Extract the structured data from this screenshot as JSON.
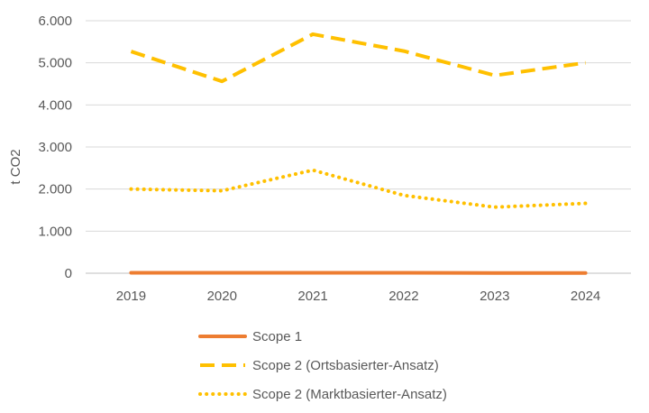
{
  "chart_data": {
    "type": "line",
    "title": "",
    "xlabel": "",
    "ylabel": "t CO2",
    "x": [
      "2019",
      "2020",
      "2021",
      "2022",
      "2023",
      "2024"
    ],
    "ylim": [
      0,
      6000
    ],
    "yticks": [
      {
        "value": 0,
        "label": "0"
      },
      {
        "value": 1000,
        "label": "1.000"
      },
      {
        "value": 2000,
        "label": "2.000"
      },
      {
        "value": 3000,
        "label": "3.000"
      },
      {
        "value": 4000,
        "label": "4.000"
      },
      {
        "value": 5000,
        "label": "5.000"
      },
      {
        "value": 6000,
        "label": "6.000"
      }
    ],
    "grid": true,
    "legend_placement": "bottom",
    "series": [
      {
        "name": "Scope 1",
        "style": "solid",
        "color": "#ED7D31",
        "values": [
          10,
          10,
          10,
          10,
          5,
          5
        ]
      },
      {
        "name": "Scope 2 (Ortsbasierter-Ansatz)",
        "style": "dashed",
        "color": "#FFC000",
        "values": [
          5270,
          4560,
          5680,
          5280,
          4700,
          5000
        ]
      },
      {
        "name": "Scope 2 (Marktbasierter-Ansatz)",
        "style": "dotted",
        "color": "#FFC000",
        "values": [
          2000,
          1960,
          2450,
          1850,
          1570,
          1660
        ]
      }
    ]
  }
}
